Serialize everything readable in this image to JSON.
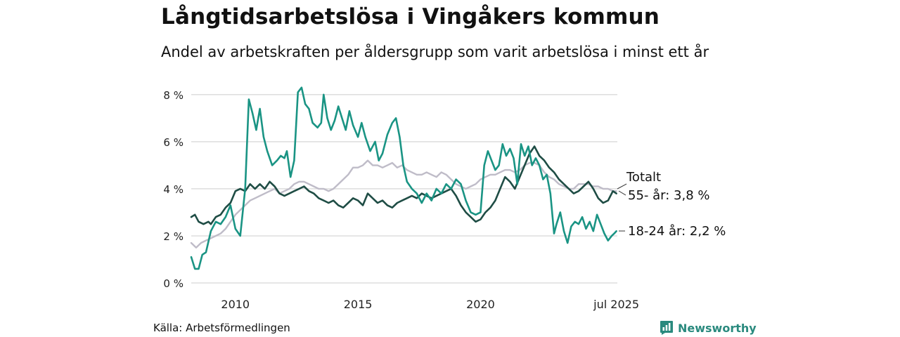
{
  "title": "Långtidsarbetslösa i Vingåkers kommun",
  "subtitle": "Andel av arbetskraften per åldersgrupp som varit arbetslösa i minst ett år",
  "source": "Källa: Arbetsförmedlingen",
  "brand": "Newsworthy",
  "colors": {
    "series_18_24": "#1a9484",
    "series_55": "#1f4d45",
    "series_total": "#bfbcc8",
    "grid": "#dddddd",
    "brand": "#2a8a7e"
  },
  "chart_data": {
    "type": "line",
    "title": "Långtidsarbetslösa i Vingåkers kommun",
    "ylim": [
      0,
      8.5
    ],
    "xlim": [
      2008.2,
      2025.58
    ],
    "y_ticks": [
      {
        "value": 0,
        "label": "0 %"
      },
      {
        "value": 2,
        "label": "2 %"
      },
      {
        "value": 4,
        "label": "4 %"
      },
      {
        "value": 6,
        "label": "6 %"
      },
      {
        "value": 8,
        "label": "8 %"
      }
    ],
    "x_ticks": [
      {
        "value": 2010,
        "label": "2010"
      },
      {
        "value": 2015,
        "label": "2015"
      },
      {
        "value": 2020,
        "label": "2020"
      },
      {
        "value": 2025.54,
        "label": "jul 2025"
      }
    ],
    "grid": true,
    "legend": "end-of-line labels at right",
    "series": [
      {
        "key": "series_total",
        "name": "Totalt",
        "end_label": "Totalt",
        "points": [
          [
            2008.2,
            1.7
          ],
          [
            2008.4,
            1.5
          ],
          [
            2008.6,
            1.7
          ],
          [
            2008.8,
            1.8
          ],
          [
            2009.0,
            1.9
          ],
          [
            2009.2,
            2.0
          ],
          [
            2009.4,
            2.1
          ],
          [
            2009.6,
            2.3
          ],
          [
            2009.8,
            2.6
          ],
          [
            2010.0,
            2.9
          ],
          [
            2010.2,
            3.1
          ],
          [
            2010.4,
            3.3
          ],
          [
            2010.6,
            3.5
          ],
          [
            2010.8,
            3.6
          ],
          [
            2011.0,
            3.7
          ],
          [
            2011.2,
            3.8
          ],
          [
            2011.4,
            3.9
          ],
          [
            2011.6,
            4.0
          ],
          [
            2011.8,
            3.8
          ],
          [
            2012.0,
            3.9
          ],
          [
            2012.2,
            4.0
          ],
          [
            2012.4,
            4.2
          ],
          [
            2012.6,
            4.3
          ],
          [
            2012.8,
            4.3
          ],
          [
            2013.0,
            4.2
          ],
          [
            2013.2,
            4.1
          ],
          [
            2013.4,
            4.0
          ],
          [
            2013.6,
            4.0
          ],
          [
            2013.8,
            3.9
          ],
          [
            2014.0,
            4.0
          ],
          [
            2014.2,
            4.2
          ],
          [
            2014.4,
            4.4
          ],
          [
            2014.6,
            4.6
          ],
          [
            2014.8,
            4.9
          ],
          [
            2015.0,
            4.9
          ],
          [
            2015.2,
            5.0
          ],
          [
            2015.4,
            5.2
          ],
          [
            2015.6,
            5.0
          ],
          [
            2015.8,
            5.0
          ],
          [
            2016.0,
            4.9
          ],
          [
            2016.2,
            5.0
          ],
          [
            2016.4,
            5.1
          ],
          [
            2016.6,
            4.9
          ],
          [
            2016.8,
            5.0
          ],
          [
            2017.0,
            4.8
          ],
          [
            2017.2,
            4.7
          ],
          [
            2017.4,
            4.6
          ],
          [
            2017.6,
            4.6
          ],
          [
            2017.8,
            4.7
          ],
          [
            2018.0,
            4.6
          ],
          [
            2018.2,
            4.5
          ],
          [
            2018.4,
            4.7
          ],
          [
            2018.6,
            4.6
          ],
          [
            2018.8,
            4.4
          ],
          [
            2019.0,
            4.2
          ],
          [
            2019.2,
            4.1
          ],
          [
            2019.4,
            4.0
          ],
          [
            2019.6,
            4.1
          ],
          [
            2019.8,
            4.2
          ],
          [
            2020.0,
            4.4
          ],
          [
            2020.2,
            4.5
          ],
          [
            2020.4,
            4.6
          ],
          [
            2020.6,
            4.6
          ],
          [
            2020.8,
            4.7
          ],
          [
            2021.0,
            4.8
          ],
          [
            2021.2,
            4.8
          ],
          [
            2021.4,
            4.7
          ],
          [
            2021.6,
            4.8
          ],
          [
            2021.8,
            5.0
          ],
          [
            2022.0,
            5.1
          ],
          [
            2022.2,
            5.1
          ],
          [
            2022.4,
            5.0
          ],
          [
            2022.6,
            4.7
          ],
          [
            2022.8,
            4.5
          ],
          [
            2023.0,
            4.4
          ],
          [
            2023.2,
            4.2
          ],
          [
            2023.4,
            4.1
          ],
          [
            2023.6,
            4.0
          ],
          [
            2023.8,
            4.0
          ],
          [
            2024.0,
            4.2
          ],
          [
            2024.2,
            4.2
          ],
          [
            2024.4,
            4.2
          ],
          [
            2024.6,
            4.1
          ],
          [
            2024.8,
            4.1
          ],
          [
            2025.0,
            4.0
          ],
          [
            2025.2,
            4.0
          ],
          [
            2025.4,
            3.9
          ],
          [
            2025.54,
            3.9
          ]
        ]
      },
      {
        "key": "series_55",
        "name": "55- år",
        "end_label": "55- år: 3,8 %",
        "points": [
          [
            2008.2,
            2.8
          ],
          [
            2008.35,
            2.9
          ],
          [
            2008.5,
            2.6
          ],
          [
            2008.7,
            2.5
          ],
          [
            2008.9,
            2.6
          ],
          [
            2009.0,
            2.5
          ],
          [
            2009.2,
            2.8
          ],
          [
            2009.4,
            2.9
          ],
          [
            2009.6,
            3.2
          ],
          [
            2009.8,
            3.4
          ],
          [
            2010.0,
            3.9
          ],
          [
            2010.2,
            4.0
          ],
          [
            2010.4,
            3.9
          ],
          [
            2010.6,
            4.2
          ],
          [
            2010.8,
            4.0
          ],
          [
            2011.0,
            4.2
          ],
          [
            2011.2,
            4.0
          ],
          [
            2011.4,
            4.3
          ],
          [
            2011.6,
            4.1
          ],
          [
            2011.8,
            3.8
          ],
          [
            2012.0,
            3.7
          ],
          [
            2012.2,
            3.8
          ],
          [
            2012.4,
            3.9
          ],
          [
            2012.6,
            4.0
          ],
          [
            2012.8,
            4.1
          ],
          [
            2013.0,
            3.9
          ],
          [
            2013.2,
            3.8
          ],
          [
            2013.4,
            3.6
          ],
          [
            2013.6,
            3.5
          ],
          [
            2013.8,
            3.4
          ],
          [
            2014.0,
            3.5
          ],
          [
            2014.2,
            3.3
          ],
          [
            2014.4,
            3.2
          ],
          [
            2014.6,
            3.4
          ],
          [
            2014.8,
            3.6
          ],
          [
            2015.0,
            3.5
          ],
          [
            2015.2,
            3.3
          ],
          [
            2015.4,
            3.8
          ],
          [
            2015.6,
            3.6
          ],
          [
            2015.8,
            3.4
          ],
          [
            2016.0,
            3.5
          ],
          [
            2016.2,
            3.3
          ],
          [
            2016.4,
            3.2
          ],
          [
            2016.6,
            3.4
          ],
          [
            2016.8,
            3.5
          ],
          [
            2017.0,
            3.6
          ],
          [
            2017.2,
            3.7
          ],
          [
            2017.4,
            3.6
          ],
          [
            2017.6,
            3.8
          ],
          [
            2017.8,
            3.7
          ],
          [
            2018.0,
            3.6
          ],
          [
            2018.2,
            3.7
          ],
          [
            2018.4,
            3.8
          ],
          [
            2018.6,
            3.9
          ],
          [
            2018.8,
            4.0
          ],
          [
            2019.0,
            3.7
          ],
          [
            2019.2,
            3.3
          ],
          [
            2019.4,
            3.0
          ],
          [
            2019.6,
            2.8
          ],
          [
            2019.8,
            2.6
          ],
          [
            2020.0,
            2.7
          ],
          [
            2020.2,
            3.0
          ],
          [
            2020.4,
            3.2
          ],
          [
            2020.6,
            3.5
          ],
          [
            2020.8,
            4.0
          ],
          [
            2021.0,
            4.5
          ],
          [
            2021.2,
            4.3
          ],
          [
            2021.4,
            4.0
          ],
          [
            2021.6,
            4.5
          ],
          [
            2021.8,
            5.0
          ],
          [
            2022.0,
            5.5
          ],
          [
            2022.2,
            5.8
          ],
          [
            2022.4,
            5.4
          ],
          [
            2022.6,
            5.2
          ],
          [
            2022.8,
            4.9
          ],
          [
            2023.0,
            4.7
          ],
          [
            2023.2,
            4.4
          ],
          [
            2023.4,
            4.2
          ],
          [
            2023.6,
            4.0
          ],
          [
            2023.8,
            3.8
          ],
          [
            2024.0,
            3.9
          ],
          [
            2024.2,
            4.1
          ],
          [
            2024.4,
            4.3
          ],
          [
            2024.6,
            4.0
          ],
          [
            2024.8,
            3.6
          ],
          [
            2025.0,
            3.4
          ],
          [
            2025.2,
            3.5
          ],
          [
            2025.4,
            3.9
          ],
          [
            2025.54,
            3.8
          ]
        ]
      },
      {
        "key": "series_18_24",
        "name": "18-24 år",
        "end_label": "18-24 år: 2,2 %",
        "points": [
          [
            2008.2,
            1.1
          ],
          [
            2008.35,
            0.6
          ],
          [
            2008.5,
            0.6
          ],
          [
            2008.65,
            1.2
          ],
          [
            2008.8,
            1.3
          ],
          [
            2009.0,
            2.2
          ],
          [
            2009.2,
            2.6
          ],
          [
            2009.4,
            2.5
          ],
          [
            2009.6,
            2.8
          ],
          [
            2009.8,
            3.3
          ],
          [
            2010.0,
            2.3
          ],
          [
            2010.2,
            2.0
          ],
          [
            2010.4,
            4.0
          ],
          [
            2010.55,
            7.8
          ],
          [
            2010.7,
            7.2
          ],
          [
            2010.85,
            6.5
          ],
          [
            2011.0,
            7.4
          ],
          [
            2011.15,
            6.2
          ],
          [
            2011.3,
            5.6
          ],
          [
            2011.5,
            5.0
          ],
          [
            2011.7,
            5.2
          ],
          [
            2011.85,
            5.4
          ],
          [
            2012.0,
            5.3
          ],
          [
            2012.1,
            5.6
          ],
          [
            2012.25,
            4.5
          ],
          [
            2012.4,
            5.2
          ],
          [
            2012.55,
            8.1
          ],
          [
            2012.7,
            8.3
          ],
          [
            2012.85,
            7.6
          ],
          [
            2013.0,
            7.4
          ],
          [
            2013.15,
            6.8
          ],
          [
            2013.35,
            6.6
          ],
          [
            2013.5,
            6.8
          ],
          [
            2013.6,
            8.0
          ],
          [
            2013.75,
            7.0
          ],
          [
            2013.9,
            6.5
          ],
          [
            2014.05,
            6.9
          ],
          [
            2014.2,
            7.5
          ],
          [
            2014.35,
            7.0
          ],
          [
            2014.5,
            6.5
          ],
          [
            2014.65,
            7.3
          ],
          [
            2014.8,
            6.7
          ],
          [
            2015.0,
            6.2
          ],
          [
            2015.15,
            6.8
          ],
          [
            2015.3,
            6.2
          ],
          [
            2015.5,
            5.6
          ],
          [
            2015.7,
            6.0
          ],
          [
            2015.85,
            5.2
          ],
          [
            2016.0,
            5.5
          ],
          [
            2016.2,
            6.3
          ],
          [
            2016.4,
            6.8
          ],
          [
            2016.55,
            7.0
          ],
          [
            2016.7,
            6.2
          ],
          [
            2016.85,
            5.0
          ],
          [
            2017.0,
            4.3
          ],
          [
            2017.2,
            4.0
          ],
          [
            2017.4,
            3.8
          ],
          [
            2017.6,
            3.4
          ],
          [
            2017.8,
            3.8
          ],
          [
            2018.0,
            3.5
          ],
          [
            2018.2,
            4.0
          ],
          [
            2018.4,
            3.8
          ],
          [
            2018.6,
            4.2
          ],
          [
            2018.8,
            4.0
          ],
          [
            2019.0,
            4.4
          ],
          [
            2019.2,
            4.2
          ],
          [
            2019.4,
            3.5
          ],
          [
            2019.6,
            3.0
          ],
          [
            2019.8,
            2.9
          ],
          [
            2020.0,
            3.0
          ],
          [
            2020.15,
            5.0
          ],
          [
            2020.3,
            5.6
          ],
          [
            2020.45,
            5.2
          ],
          [
            2020.6,
            4.8
          ],
          [
            2020.75,
            5.0
          ],
          [
            2020.9,
            5.9
          ],
          [
            2021.05,
            5.4
          ],
          [
            2021.2,
            5.7
          ],
          [
            2021.35,
            5.3
          ],
          [
            2021.5,
            4.2
          ],
          [
            2021.65,
            5.9
          ],
          [
            2021.8,
            5.4
          ],
          [
            2021.95,
            5.8
          ],
          [
            2022.1,
            5.0
          ],
          [
            2022.25,
            5.3
          ],
          [
            2022.4,
            5.0
          ],
          [
            2022.55,
            4.4
          ],
          [
            2022.7,
            4.6
          ],
          [
            2022.85,
            3.8
          ],
          [
            2023.0,
            2.1
          ],
          [
            2023.1,
            2.5
          ],
          [
            2023.25,
            3.0
          ],
          [
            2023.4,
            2.2
          ],
          [
            2023.55,
            1.7
          ],
          [
            2023.7,
            2.4
          ],
          [
            2023.85,
            2.6
          ],
          [
            2024.0,
            2.5
          ],
          [
            2024.15,
            2.8
          ],
          [
            2024.3,
            2.3
          ],
          [
            2024.45,
            2.6
          ],
          [
            2024.6,
            2.2
          ],
          [
            2024.75,
            2.9
          ],
          [
            2024.9,
            2.5
          ],
          [
            2025.05,
            2.1
          ],
          [
            2025.2,
            1.8
          ],
          [
            2025.35,
            2.0
          ],
          [
            2025.45,
            2.1
          ],
          [
            2025.54,
            2.2
          ]
        ]
      }
    ]
  }
}
